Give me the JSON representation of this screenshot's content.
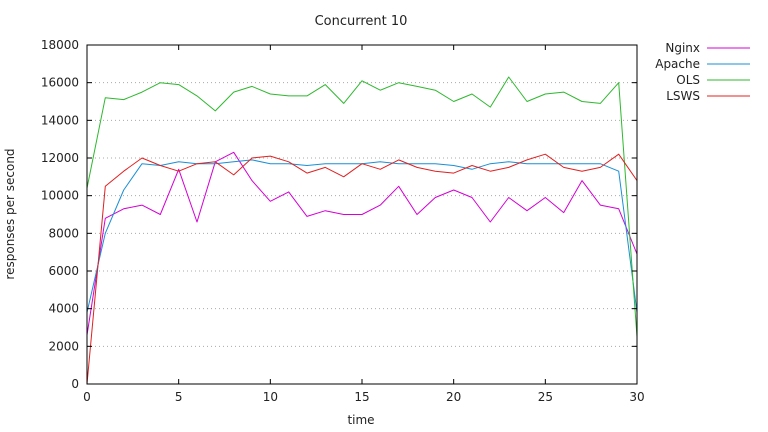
{
  "chart_data": {
    "type": "line",
    "title": "Concurrent 10",
    "xlabel": "time",
    "ylabel": "responses per second",
    "xlim": [
      0,
      30
    ],
    "ylim": [
      0,
      18000
    ],
    "x_ticks": [
      0,
      5,
      10,
      15,
      20,
      25,
      30
    ],
    "y_ticks": [
      0,
      2000,
      4000,
      6000,
      8000,
      10000,
      12000,
      14000,
      16000,
      18000
    ],
    "grid": "horizontal dotted",
    "legend_position": "right",
    "series": [
      {
        "name": "Nginx",
        "color": "#d400d4",
        "x": [
          0,
          1,
          2,
          3,
          4,
          5,
          6,
          7,
          8,
          9,
          10,
          11,
          12,
          13,
          14,
          15,
          16,
          17,
          18,
          19,
          20,
          21,
          22,
          23,
          24,
          25,
          26,
          27,
          28,
          29,
          30
        ],
        "values": [
          2600,
          8800,
          9300,
          9500,
          9000,
          11400,
          8600,
          11800,
          12300,
          10800,
          9700,
          10200,
          8900,
          9200,
          9000,
          9000,
          9500,
          10500,
          9000,
          9900,
          10300,
          9900,
          8600,
          9900,
          9200,
          9900,
          9100,
          10800,
          9500,
          9300,
          6900
        ]
      },
      {
        "name": "Apache",
        "color": "#1a8fd6",
        "x": [
          0,
          1,
          2,
          3,
          4,
          5,
          6,
          7,
          8,
          9,
          10,
          11,
          12,
          13,
          14,
          15,
          16,
          17,
          18,
          19,
          20,
          21,
          22,
          23,
          24,
          25,
          26,
          27,
          28,
          29,
          30
        ],
        "values": [
          3800,
          8000,
          10300,
          11700,
          11600,
          11800,
          11700,
          11700,
          11800,
          11900,
          11700,
          11700,
          11600,
          11700,
          11700,
          11700,
          11800,
          11700,
          11700,
          11700,
          11600,
          11400,
          11700,
          11800,
          11700,
          11700,
          11700,
          11700,
          11700,
          11300,
          3800
        ]
      },
      {
        "name": "OLS",
        "color": "#2eb82e",
        "x": [
          0,
          1,
          2,
          3,
          4,
          5,
          6,
          7,
          8,
          9,
          10,
          11,
          12,
          13,
          14,
          15,
          16,
          17,
          18,
          19,
          20,
          21,
          22,
          23,
          24,
          25,
          26,
          27,
          28,
          29,
          30
        ],
        "values": [
          10400,
          15200,
          15100,
          15500,
          16000,
          15900,
          15300,
          14500,
          15500,
          15800,
          15400,
          15300,
          15300,
          15900,
          14900,
          16100,
          15600,
          16000,
          15800,
          15600,
          15000,
          15400,
          14700,
          16300,
          15000,
          15400,
          15500,
          15000,
          14900,
          16000,
          2500
        ]
      },
      {
        "name": "LSWS",
        "color": "#e02020",
        "x": [
          0,
          1,
          2,
          3,
          4,
          5,
          6,
          7,
          8,
          9,
          10,
          11,
          12,
          13,
          14,
          15,
          16,
          17,
          18,
          19,
          20,
          21,
          22,
          23,
          24,
          25,
          26,
          27,
          28,
          29,
          30
        ],
        "values": [
          0,
          10500,
          11300,
          12000,
          11600,
          11300,
          11700,
          11800,
          11100,
          12000,
          12100,
          11800,
          11200,
          11500,
          11000,
          11700,
          11400,
          11900,
          11500,
          11300,
          11200,
          11600,
          11300,
          11500,
          11900,
          12200,
          11500,
          11300,
          11500,
          12200,
          10800
        ]
      }
    ]
  }
}
